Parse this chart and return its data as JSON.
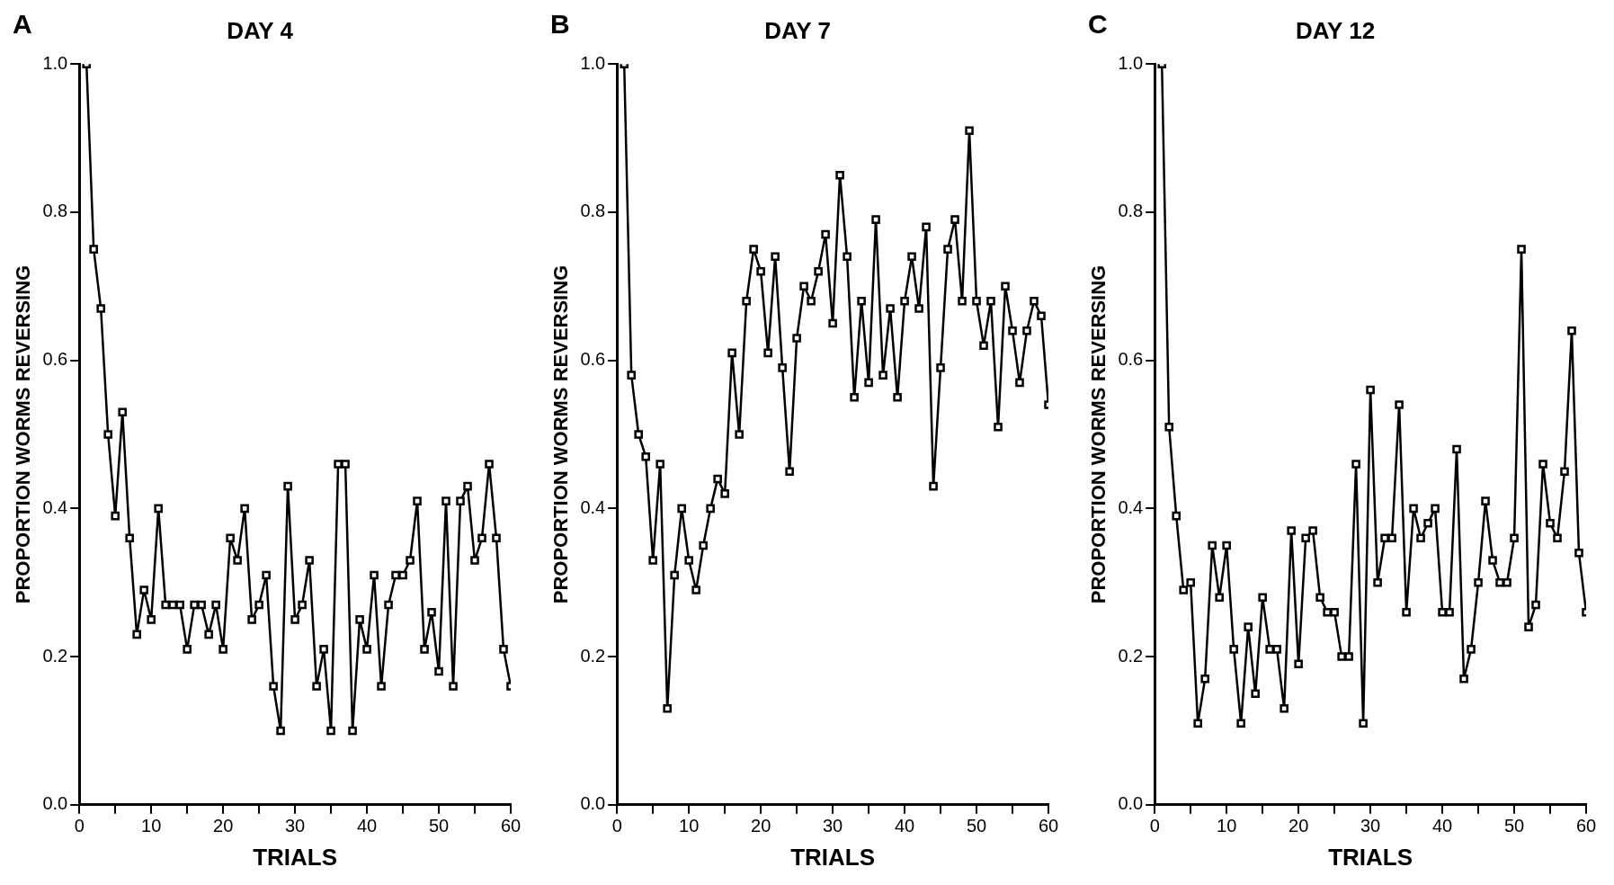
{
  "chart_data": [
    {
      "type": "line",
      "title": "DAY 4",
      "annotations": [
        "A"
      ],
      "xlabel": "TRIALS",
      "ylabel": "PROPORTION WORMS REVERSING",
      "marker": "square",
      "line_style": "solid",
      "grid": false,
      "legend": false,
      "x": [
        1,
        2,
        3,
        4,
        5,
        6,
        7,
        8,
        9,
        10,
        11,
        12,
        13,
        14,
        15,
        16,
        17,
        18,
        19,
        20,
        21,
        22,
        23,
        24,
        25,
        26,
        27,
        28,
        29,
        30,
        31,
        32,
        33,
        34,
        35,
        36,
        37,
        38,
        39,
        40,
        41,
        42,
        43,
        44,
        45,
        46,
        47,
        48,
        49,
        50,
        51,
        52,
        53,
        54,
        55,
        56,
        57,
        58,
        59,
        60
      ],
      "xlim": [
        0,
        60
      ],
      "xticks": [
        0,
        {
          "value": 5,
          "label": null
        },
        10,
        {
          "value": 15,
          "label": null
        },
        20,
        {
          "value": 25,
          "label": null
        },
        30,
        {
          "value": 35,
          "label": null
        },
        40,
        {
          "value": 45,
          "label": null
        },
        50,
        {
          "value": 55,
          "label": null
        },
        60
      ],
      "ylim": [
        0,
        1
      ],
      "yticks": [
        {
          "value": 0,
          "label": "0.0"
        },
        {
          "value": 0.2,
          "label": "0.2"
        },
        {
          "value": 0.4,
          "label": "0.4"
        },
        {
          "value": 0.6,
          "label": "0.6"
        },
        {
          "value": 0.8,
          "label": "0.8"
        },
        {
          "value": 1,
          "label": "1.0"
        }
      ],
      "series": [
        {
          "color": "#000000",
          "values": [
            1.0,
            0.75,
            0.67,
            0.5,
            0.39,
            0.53,
            0.36,
            0.23,
            0.29,
            0.25,
            0.4,
            0.27,
            0.27,
            0.27,
            0.21,
            0.27,
            0.27,
            0.23,
            0.27,
            0.21,
            0.36,
            0.33,
            0.4,
            0.25,
            0.27,
            0.31,
            0.16,
            0.1,
            0.43,
            0.25,
            0.27,
            0.33,
            0.16,
            0.21,
            0.1,
            0.46,
            0.46,
            0.1,
            0.25,
            0.21,
            0.31,
            0.16,
            0.27,
            0.31,
            0.31,
            0.33,
            0.41,
            0.21,
            0.26,
            0.18,
            0.41,
            0.16,
            0.41,
            0.43,
            0.33,
            0.36,
            0.46,
            0.36,
            0.21,
            0.16
          ]
        }
      ]
    },
    {
      "type": "line",
      "title": "DAY 7",
      "annotations": [
        "B"
      ],
      "xlabel": "TRIALS",
      "ylabel": "PROPORTION WORMS REVERSING",
      "marker": "square",
      "line_style": "solid",
      "grid": false,
      "legend": false,
      "x": [
        1,
        2,
        3,
        4,
        5,
        6,
        7,
        8,
        9,
        10,
        11,
        12,
        13,
        14,
        15,
        16,
        17,
        18,
        19,
        20,
        21,
        22,
        23,
        24,
        25,
        26,
        27,
        28,
        29,
        30,
        31,
        32,
        33,
        34,
        35,
        36,
        37,
        38,
        39,
        40,
        41,
        42,
        43,
        44,
        45,
        46,
        47,
        48,
        49,
        50,
        51,
        52,
        53,
        54,
        55,
        56,
        57,
        58,
        59,
        60
      ],
      "xlim": [
        0,
        60
      ],
      "xticks": [
        0,
        {
          "value": 5,
          "label": null
        },
        10,
        {
          "value": 15,
          "label": null
        },
        20,
        {
          "value": 25,
          "label": null
        },
        30,
        {
          "value": 35,
          "label": null
        },
        40,
        {
          "value": 45,
          "label": null
        },
        50,
        {
          "value": 55,
          "label": null
        },
        60
      ],
      "ylim": [
        0,
        1
      ],
      "yticks": [
        {
          "value": 0,
          "label": "0.0"
        },
        {
          "value": 0.2,
          "label": "0.2"
        },
        {
          "value": 0.4,
          "label": "0.4"
        },
        {
          "value": 0.6,
          "label": "0.6"
        },
        {
          "value": 0.8,
          "label": "0.8"
        },
        {
          "value": 1,
          "label": "1.0"
        }
      ],
      "series": [
        {
          "color": "#000000",
          "values": [
            1.0,
            0.58,
            0.5,
            0.47,
            0.33,
            0.46,
            0.13,
            0.31,
            0.4,
            0.33,
            0.29,
            0.35,
            0.4,
            0.44,
            0.42,
            0.61,
            0.5,
            0.68,
            0.75,
            0.72,
            0.61,
            0.74,
            0.59,
            0.45,
            0.63,
            0.7,
            0.68,
            0.72,
            0.77,
            0.65,
            0.85,
            0.74,
            0.55,
            0.68,
            0.57,
            0.79,
            0.58,
            0.67,
            0.55,
            0.68,
            0.74,
            0.67,
            0.78,
            0.43,
            0.59,
            0.75,
            0.79,
            0.68,
            0.91,
            0.68,
            0.62,
            0.68,
            0.51,
            0.7,
            0.64,
            0.57,
            0.64,
            0.68,
            0.66,
            0.54
          ]
        }
      ]
    },
    {
      "type": "line",
      "title": "DAY 12",
      "annotations": [
        "C"
      ],
      "xlabel": "TRIALS",
      "ylabel": "PROPORTION WORMS REVERSING",
      "marker": "square",
      "line_style": "solid",
      "grid": false,
      "legend": false,
      "x": [
        1,
        2,
        3,
        4,
        5,
        6,
        7,
        8,
        9,
        10,
        11,
        12,
        13,
        14,
        15,
        16,
        17,
        18,
        19,
        20,
        21,
        22,
        23,
        24,
        25,
        26,
        27,
        28,
        29,
        30,
        31,
        32,
        33,
        34,
        35,
        36,
        37,
        38,
        39,
        40,
        41,
        42,
        43,
        44,
        45,
        46,
        47,
        48,
        49,
        50,
        51,
        52,
        53,
        54,
        55,
        56,
        57,
        58,
        59,
        60
      ],
      "xlim": [
        0,
        60
      ],
      "xticks": [
        0,
        {
          "value": 5,
          "label": null
        },
        10,
        {
          "value": 15,
          "label": null
        },
        20,
        {
          "value": 25,
          "label": null
        },
        30,
        {
          "value": 35,
          "label": null
        },
        40,
        {
          "value": 45,
          "label": null
        },
        50,
        {
          "value": 55,
          "label": null
        },
        60
      ],
      "ylim": [
        0,
        1
      ],
      "yticks": [
        {
          "value": 0,
          "label": "0.0"
        },
        {
          "value": 0.2,
          "label": "0.2"
        },
        {
          "value": 0.4,
          "label": "0.4"
        },
        {
          "value": 0.6,
          "label": "0.6"
        },
        {
          "value": 0.8,
          "label": "0.8"
        },
        {
          "value": 1,
          "label": "1.0"
        }
      ],
      "series": [
        {
          "color": "#000000",
          "values": [
            1.0,
            0.51,
            0.39,
            0.29,
            0.3,
            0.11,
            0.17,
            0.35,
            0.28,
            0.35,
            0.21,
            0.11,
            0.24,
            0.15,
            0.28,
            0.21,
            0.21,
            0.13,
            0.37,
            0.19,
            0.36,
            0.37,
            0.28,
            0.26,
            0.26,
            0.2,
            0.2,
            0.46,
            0.11,
            0.56,
            0.3,
            0.36,
            0.36,
            0.54,
            0.26,
            0.4,
            0.36,
            0.38,
            0.4,
            0.26,
            0.26,
            0.48,
            0.17,
            0.21,
            0.3,
            0.41,
            0.33,
            0.3,
            0.3,
            0.36,
            0.75,
            0.24,
            0.27,
            0.46,
            0.38,
            0.36,
            0.45,
            0.64,
            0.34,
            0.26
          ]
        }
      ]
    }
  ]
}
